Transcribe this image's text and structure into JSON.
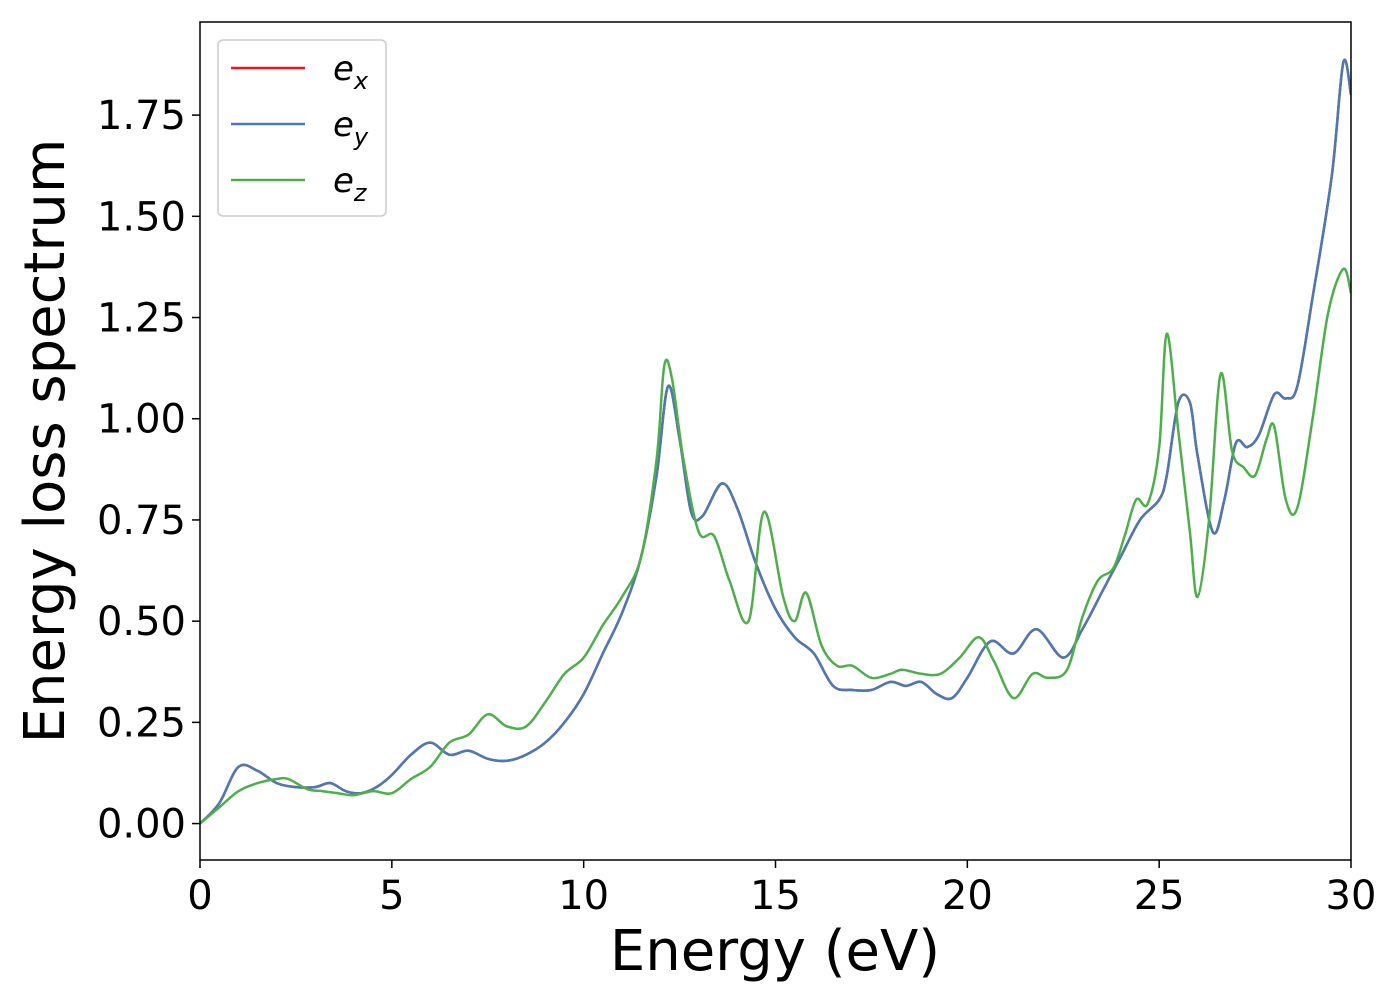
{
  "chart_data": {
    "type": "line",
    "xlabel": "Energy (eV)",
    "ylabel": "Energy loss spectrum",
    "xlim": [
      0,
      30
    ],
    "ylim": [
      -0.09,
      1.98
    ],
    "xticks": [
      0,
      5,
      10,
      15,
      20,
      25,
      30
    ],
    "xtick_labels": [
      "0",
      "5",
      "10",
      "15",
      "20",
      "25",
      "30"
    ],
    "yticks": [
      0.0,
      0.25,
      0.5,
      0.75,
      1.0,
      1.25,
      1.5,
      1.75
    ],
    "ytick_labels": [
      "0.00",
      "0.25",
      "0.50",
      "0.75",
      "1.00",
      "1.25",
      "1.50",
      "1.75"
    ],
    "grid": false,
    "legend_position": "top-left",
    "series": [
      {
        "name": "e",
        "subscript": "x",
        "color": "#e41a1c",
        "x": [
          0,
          0.5,
          1.0,
          1.5,
          2.0,
          2.5,
          3.0,
          3.4,
          3.8,
          4.2,
          4.6,
          5.0,
          5.5,
          6.0,
          6.5,
          7.0,
          7.5,
          8.0,
          8.5,
          9.0,
          9.5,
          10.0,
          10.5,
          11.0,
          11.5,
          11.9,
          12.2,
          12.5,
          12.8,
          13.1,
          13.6,
          14.0,
          14.5,
          15.0,
          15.5,
          16.0,
          16.5,
          17.0,
          17.5,
          18.0,
          18.4,
          18.8,
          19.2,
          19.6,
          20.0,
          20.6,
          21.2,
          21.8,
          22.5,
          23.0,
          23.5,
          24.0,
          24.5,
          25.0,
          25.2,
          25.5,
          25.8,
          26.0,
          26.4,
          26.7,
          27.0,
          27.3,
          27.6,
          28.0,
          28.3,
          28.6,
          29.0,
          29.5,
          29.8,
          30.0
        ],
        "values": [
          0.0,
          0.05,
          0.14,
          0.13,
          0.1,
          0.09,
          0.09,
          0.1,
          0.08,
          0.075,
          0.09,
          0.12,
          0.17,
          0.2,
          0.17,
          0.18,
          0.16,
          0.155,
          0.17,
          0.2,
          0.25,
          0.32,
          0.42,
          0.52,
          0.66,
          0.86,
          1.08,
          0.95,
          0.77,
          0.76,
          0.84,
          0.78,
          0.64,
          0.53,
          0.46,
          0.42,
          0.34,
          0.33,
          0.33,
          0.35,
          0.34,
          0.35,
          0.32,
          0.31,
          0.36,
          0.45,
          0.42,
          0.48,
          0.41,
          0.48,
          0.57,
          0.66,
          0.75,
          0.8,
          0.86,
          1.04,
          1.04,
          0.91,
          0.72,
          0.8,
          0.94,
          0.93,
          0.96,
          1.06,
          1.05,
          1.08,
          1.3,
          1.6,
          1.88,
          1.8
        ]
      },
      {
        "name": "e",
        "subscript": "y",
        "color": "#4a7ab5",
        "x": [
          0,
          0.5,
          1.0,
          1.5,
          2.0,
          2.5,
          3.0,
          3.4,
          3.8,
          4.2,
          4.6,
          5.0,
          5.5,
          6.0,
          6.5,
          7.0,
          7.5,
          8.0,
          8.5,
          9.0,
          9.5,
          10.0,
          10.5,
          11.0,
          11.5,
          11.9,
          12.2,
          12.5,
          12.8,
          13.1,
          13.6,
          14.0,
          14.5,
          15.0,
          15.5,
          16.0,
          16.5,
          17.0,
          17.5,
          18.0,
          18.4,
          18.8,
          19.2,
          19.6,
          20.0,
          20.6,
          21.2,
          21.8,
          22.5,
          23.0,
          23.5,
          24.0,
          24.5,
          25.0,
          25.2,
          25.5,
          25.8,
          26.0,
          26.4,
          26.7,
          27.0,
          27.3,
          27.6,
          28.0,
          28.3,
          28.6,
          29.0,
          29.5,
          29.8,
          30.0
        ],
        "values": [
          0.0,
          0.05,
          0.14,
          0.13,
          0.1,
          0.09,
          0.09,
          0.1,
          0.08,
          0.075,
          0.09,
          0.12,
          0.17,
          0.2,
          0.17,
          0.18,
          0.16,
          0.155,
          0.17,
          0.2,
          0.25,
          0.32,
          0.42,
          0.52,
          0.66,
          0.86,
          1.08,
          0.95,
          0.77,
          0.76,
          0.84,
          0.78,
          0.64,
          0.53,
          0.46,
          0.42,
          0.34,
          0.33,
          0.33,
          0.35,
          0.34,
          0.35,
          0.32,
          0.31,
          0.36,
          0.45,
          0.42,
          0.48,
          0.41,
          0.48,
          0.57,
          0.66,
          0.75,
          0.8,
          0.86,
          1.04,
          1.04,
          0.91,
          0.72,
          0.8,
          0.94,
          0.93,
          0.96,
          1.06,
          1.05,
          1.08,
          1.3,
          1.6,
          1.88,
          1.8
        ]
      },
      {
        "name": "e",
        "subscript": "z",
        "color": "#4daf4a",
        "x": [
          0,
          0.5,
          1.0,
          1.5,
          2.0,
          2.3,
          2.8,
          3.2,
          3.6,
          4.0,
          4.5,
          5.0,
          5.5,
          6.0,
          6.5,
          7.0,
          7.5,
          8.0,
          8.5,
          9.0,
          9.5,
          10.0,
          10.5,
          11.0,
          11.5,
          11.9,
          12.1,
          12.3,
          12.6,
          13.0,
          13.4,
          13.8,
          14.3,
          14.7,
          15.2,
          15.5,
          15.8,
          16.2,
          16.6,
          17.0,
          17.5,
          18.0,
          18.3,
          18.8,
          19.3,
          19.8,
          20.3,
          20.7,
          21.2,
          21.7,
          22.1,
          22.6,
          23.0,
          23.4,
          23.8,
          24.1,
          24.4,
          24.7,
          25.0,
          25.2,
          25.5,
          25.8,
          26.0,
          26.3,
          26.6,
          26.9,
          27.2,
          27.5,
          27.8,
          28.0,
          28.3,
          28.6,
          29.0,
          29.4,
          29.8,
          30.0
        ],
        "values": [
          0.0,
          0.04,
          0.08,
          0.1,
          0.11,
          0.11,
          0.085,
          0.08,
          0.075,
          0.07,
          0.08,
          0.075,
          0.11,
          0.14,
          0.2,
          0.22,
          0.27,
          0.24,
          0.24,
          0.3,
          0.37,
          0.41,
          0.49,
          0.56,
          0.66,
          0.9,
          1.13,
          1.1,
          0.9,
          0.72,
          0.71,
          0.6,
          0.5,
          0.77,
          0.56,
          0.5,
          0.57,
          0.44,
          0.39,
          0.39,
          0.36,
          0.37,
          0.38,
          0.37,
          0.37,
          0.41,
          0.46,
          0.4,
          0.31,
          0.37,
          0.36,
          0.38,
          0.51,
          0.6,
          0.63,
          0.71,
          0.8,
          0.79,
          0.93,
          1.21,
          0.97,
          0.72,
          0.56,
          0.75,
          1.11,
          0.92,
          0.88,
          0.86,
          0.95,
          0.98,
          0.8,
          0.78,
          1.0,
          1.26,
          1.37,
          1.31
        ]
      }
    ]
  }
}
